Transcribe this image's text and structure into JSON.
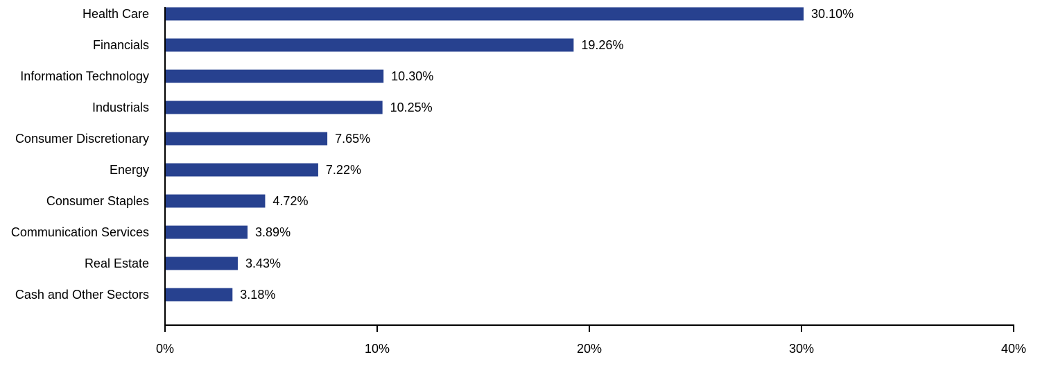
{
  "chart_data": {
    "type": "bar",
    "orientation": "horizontal",
    "categories": [
      "Health Care",
      "Financials",
      "Information Technology",
      "Industrials",
      "Consumer Discretionary",
      "Energy",
      "Consumer Staples",
      "Communication Services",
      "Real Estate",
      "Cash and Other Sectors"
    ],
    "values": [
      30.1,
      19.26,
      10.3,
      10.25,
      7.65,
      7.22,
      4.72,
      3.89,
      3.43,
      3.18
    ],
    "value_labels": [
      "30.10%",
      "19.26%",
      "10.30%",
      "10.25%",
      "7.65%",
      "7.22%",
      "4.72%",
      "3.89%",
      "3.43%",
      "3.18%"
    ],
    "title": "",
    "xlabel": "",
    "ylabel": "",
    "xlim": [
      0,
      40
    ],
    "x_ticks": [
      0,
      10,
      20,
      30,
      40
    ],
    "x_tick_labels": [
      "0%",
      "10%",
      "20%",
      "30%",
      "40%"
    ],
    "grid": false,
    "legend": "none",
    "bar_color": "#27418F",
    "axis_color": "#000000"
  }
}
